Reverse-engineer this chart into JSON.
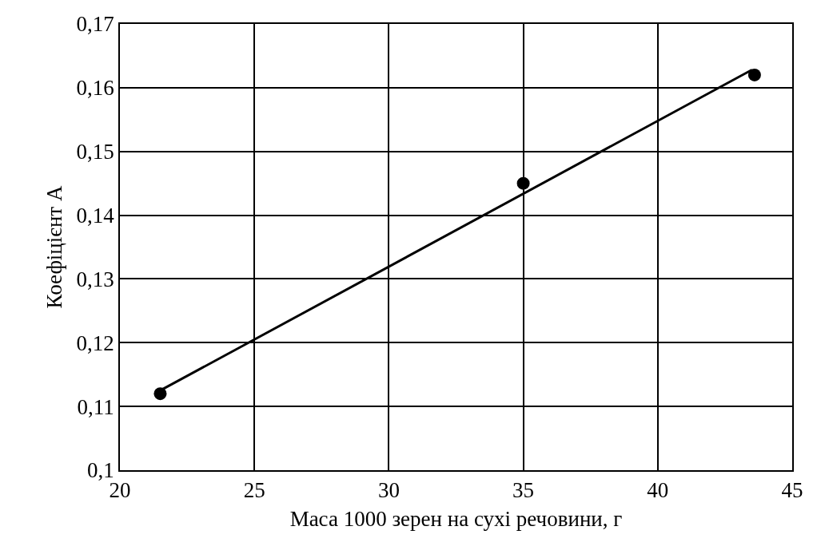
{
  "chart_data": {
    "type": "scatter",
    "xlabel": "Маса 1000 зерен на сухі речовини, г",
    "ylabel": "Коефіцієнт А",
    "series": [
      {
        "type": "scatter",
        "color": "#000000",
        "x": [
          21.5,
          35,
          43.6
        ],
        "values": [
          0.112,
          0.145,
          0.162
        ],
        "marker": "circle"
      },
      {
        "type": "line",
        "color": "#000000",
        "x": [
          21.5,
          43.5
        ],
        "values": [
          0.1125,
          0.1628
        ],
        "marker": "none",
        "line_style": "solid"
      }
    ],
    "xlim": [
      20,
      45
    ],
    "xticks": [
      20,
      25,
      30,
      35,
      40,
      45
    ],
    "ylim": [
      0.1,
      0.17
    ],
    "yticks": [
      {
        "value": 0.1,
        "label": "0,1"
      },
      {
        "value": 0.11,
        "label": "0,11"
      },
      {
        "value": 0.12,
        "label": "0,12"
      },
      {
        "value": 0.13,
        "label": "0,13"
      },
      {
        "value": 0.14,
        "label": "0,14"
      },
      {
        "value": 0.15,
        "label": "0,15"
      },
      {
        "value": 0.16,
        "label": "0,16"
      },
      {
        "value": 0.17,
        "label": "0,17"
      }
    ],
    "grid": true
  }
}
